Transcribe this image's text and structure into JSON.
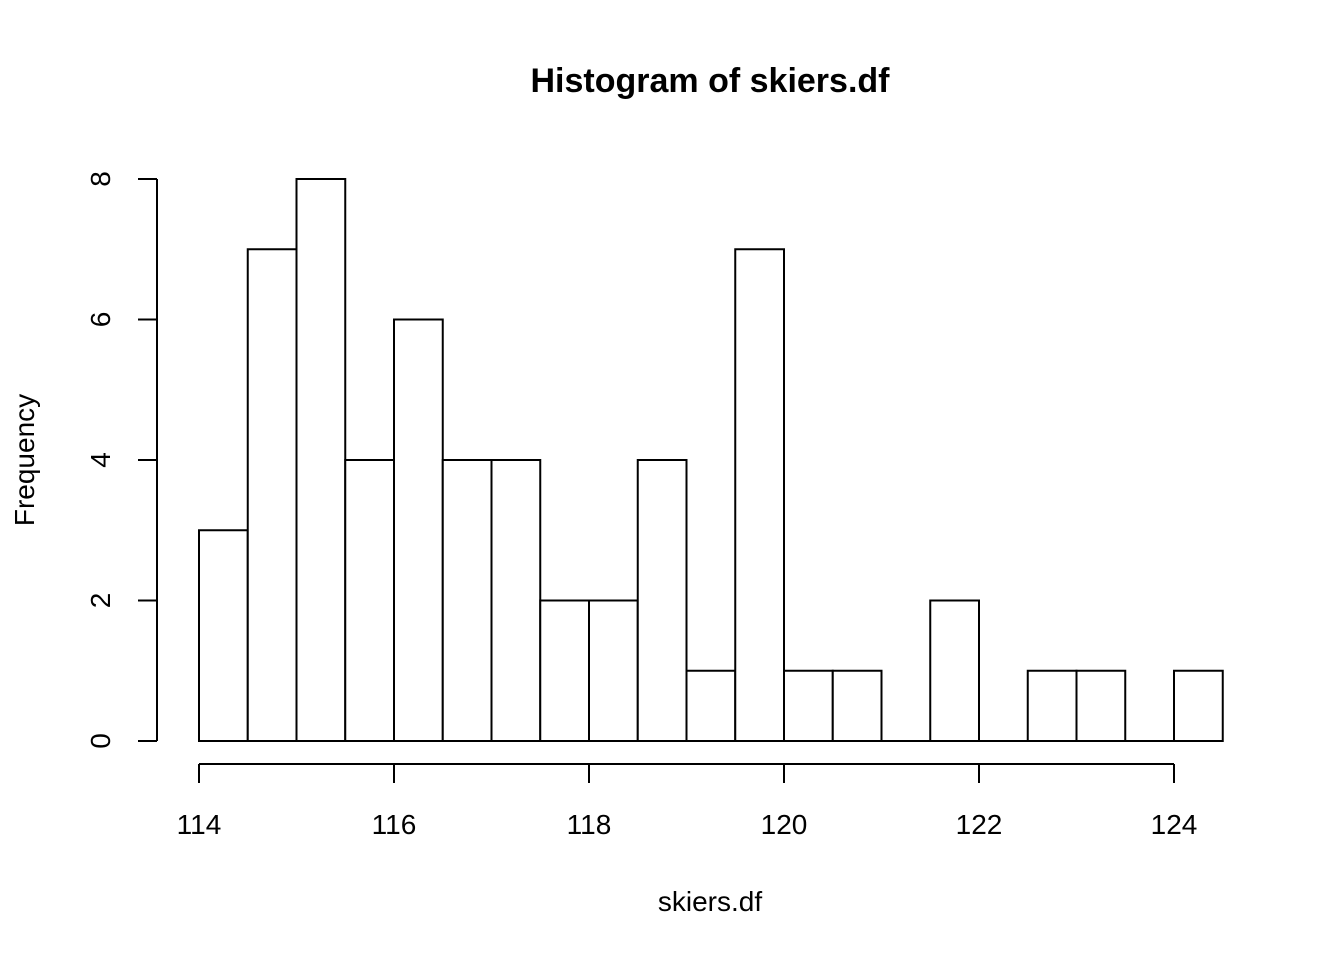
{
  "chart_data": {
    "type": "bar",
    "title": "Histogram of skiers.df",
    "xlabel": "skiers.df",
    "ylabel": "Frequency",
    "bins": [
      {
        "start": 114.0,
        "end": 114.5,
        "count": 3
      },
      {
        "start": 114.5,
        "end": 115.0,
        "count": 7
      },
      {
        "start": 115.0,
        "end": 115.5,
        "count": 8
      },
      {
        "start": 115.5,
        "end": 116.0,
        "count": 4
      },
      {
        "start": 116.0,
        "end": 116.5,
        "count": 6
      },
      {
        "start": 116.5,
        "end": 117.0,
        "count": 4
      },
      {
        "start": 117.0,
        "end": 117.5,
        "count": 4
      },
      {
        "start": 117.5,
        "end": 118.0,
        "count": 2
      },
      {
        "start": 118.0,
        "end": 118.5,
        "count": 2
      },
      {
        "start": 118.5,
        "end": 119.0,
        "count": 4
      },
      {
        "start": 119.0,
        "end": 119.5,
        "count": 1
      },
      {
        "start": 119.5,
        "end": 120.0,
        "count": 7
      },
      {
        "start": 120.0,
        "end": 120.5,
        "count": 1
      },
      {
        "start": 120.5,
        "end": 121.0,
        "count": 1
      },
      {
        "start": 121.0,
        "end": 121.5,
        "count": 0
      },
      {
        "start": 121.5,
        "end": 122.0,
        "count": 2
      },
      {
        "start": 122.0,
        "end": 122.5,
        "count": 0
      },
      {
        "start": 122.5,
        "end": 123.0,
        "count": 1
      },
      {
        "start": 123.0,
        "end": 123.5,
        "count": 1
      },
      {
        "start": 123.5,
        "end": 124.0,
        "count": 0
      },
      {
        "start": 124.0,
        "end": 124.5,
        "count": 1
      }
    ],
    "xlim": [
      114,
      124.5
    ],
    "ylim": [
      0,
      8
    ],
    "x_ticks": [
      114,
      116,
      118,
      120,
      122,
      124
    ],
    "y_ticks": [
      0,
      2,
      4,
      6,
      8
    ],
    "grid": false,
    "colors": {
      "bar_fill": "#ffffff",
      "bar_stroke": "#000000"
    }
  }
}
